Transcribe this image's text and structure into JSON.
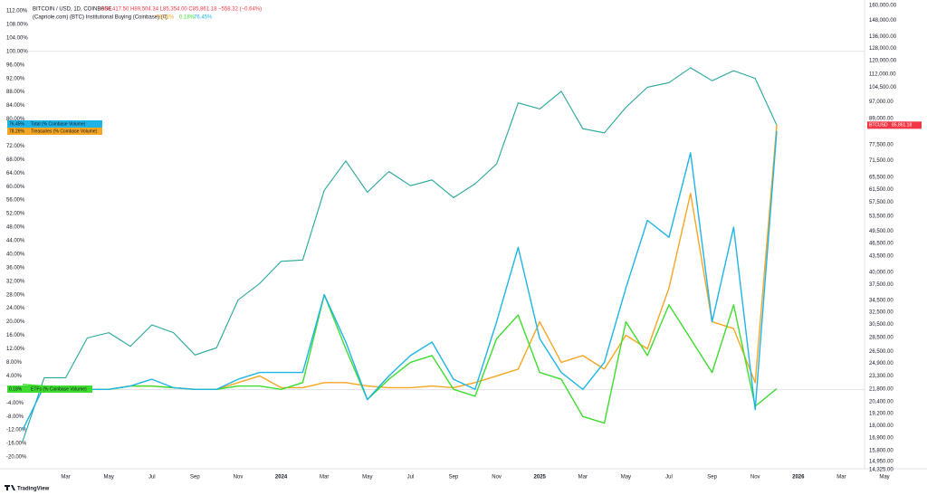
{
  "chart_data": {
    "type": "line",
    "title": "BITCOIN / USD, 1D, COINBASE",
    "ohlc": "O86,417.50 H89,504.34 L85,354.00 C85,861.18 −558.32 (−0.64%)",
    "indicator": "(Capriole.com) (BTC) Institutional Buying (Coinbase) (0)",
    "footer": "TradingView",
    "x": [
      "2023-01",
      "2023-02",
      "2023-03",
      "2023-04",
      "2023-05",
      "2023-06",
      "2023-07",
      "2023-08",
      "2023-09",
      "2023-10",
      "2023-11",
      "2023-12",
      "2024-01",
      "2024-02",
      "2024-03",
      "2024-04",
      "2024-05",
      "2024-06",
      "2024-07",
      "2024-08",
      "2024-09",
      "2024-10",
      "2024-11",
      "2024-12",
      "2025-01",
      "2025-02",
      "2025-03",
      "2025-04",
      "2025-05",
      "2025-06",
      "2025-07",
      "2025-08",
      "2025-09",
      "2025-10",
      "2025-11",
      "2025-12"
    ],
    "xticks": [
      {
        "value": "2023-03",
        "label": "Mar"
      },
      {
        "value": "2023-05",
        "label": "May"
      },
      {
        "value": "2023-07",
        "label": "Jul"
      },
      {
        "value": "2023-09",
        "label": "Sep"
      },
      {
        "value": "2023-11",
        "label": "Nov"
      },
      {
        "value": "2024-01",
        "label": "2024"
      },
      {
        "value": "2024-03",
        "label": "Mar"
      },
      {
        "value": "2024-05",
        "label": "May"
      },
      {
        "value": "2024-07",
        "label": "Jul"
      },
      {
        "value": "2024-09",
        "label": "Sep"
      },
      {
        "value": "2024-11",
        "label": "Nov"
      },
      {
        "value": "2025-01",
        "label": "2025"
      },
      {
        "value": "2025-03",
        "label": "Mar"
      },
      {
        "value": "2025-05",
        "label": "May"
      },
      {
        "value": "2025-07",
        "label": "Jul"
      },
      {
        "value": "2025-09",
        "label": "Sep"
      },
      {
        "value": "2025-11",
        "label": "Nov"
      },
      {
        "value": "2026-01",
        "label": "2026"
      },
      {
        "value": "2026-03",
        "label": "Mar"
      },
      {
        "value": "2026-05",
        "label": "May"
      }
    ],
    "ylim": [
      -23.75,
      113.6
    ],
    "yticks": [
      {
        "value": 112,
        "label": "112.00%"
      },
      {
        "value": 108,
        "label": "108.00%"
      },
      {
        "value": 104,
        "label": "104.00%"
      },
      {
        "value": 100,
        "label": "100.00%"
      },
      {
        "value": 96,
        "label": "96.00%"
      },
      {
        "value": 92,
        "label": "92.00%"
      },
      {
        "value": 88,
        "label": "88.00%"
      },
      {
        "value": 84,
        "label": "84.00%"
      },
      {
        "value": 80,
        "label": "80.00%"
      },
      {
        "value": 72,
        "label": "72.00%"
      },
      {
        "value": 68,
        "label": "68.00%"
      },
      {
        "value": 64,
        "label": "64.00%"
      },
      {
        "value": 60,
        "label": "60.00%"
      },
      {
        "value": 56,
        "label": "56.00%"
      },
      {
        "value": 52,
        "label": "52.00%"
      },
      {
        "value": 48,
        "label": "48.00%"
      },
      {
        "value": 44,
        "label": "44.00%"
      },
      {
        "value": 40,
        "label": "40.00%"
      },
      {
        "value": 36,
        "label": "36.00%"
      },
      {
        "value": 32,
        "label": "32.00%"
      },
      {
        "value": 28,
        "label": "28.00%"
      },
      {
        "value": 24,
        "label": "24.00%"
      },
      {
        "value": 20,
        "label": "20.00%"
      },
      {
        "value": 16,
        "label": "16.00%"
      },
      {
        "value": 12,
        "label": "12.00%"
      },
      {
        "value": 8,
        "label": "8.00%"
      },
      {
        "value": 4,
        "label": "4.00%"
      },
      {
        "value": -4,
        "label": "-4.00%"
      },
      {
        "value": -8,
        "label": "-8.00%"
      },
      {
        "value": -12,
        "label": "-12.00%"
      },
      {
        "value": -16,
        "label": "-16.00%"
      },
      {
        "value": -20,
        "label": "-20.00%"
      }
    ],
    "y2lim": [
      14325,
      160000
    ],
    "y2scale": "log",
    "y2ticks": [
      {
        "value": 160000,
        "label": "160,000.00"
      },
      {
        "value": 148000,
        "label": "148,000.00"
      },
      {
        "value": 136000,
        "label": "136,000.00"
      },
      {
        "value": 128000,
        "label": "128,000.00"
      },
      {
        "value": 120000,
        "label": "120,000.00"
      },
      {
        "value": 112000,
        "label": "112,000.00"
      },
      {
        "value": 104500,
        "label": "104,500.00"
      },
      {
        "value": 97000,
        "label": "97,000.00"
      },
      {
        "value": 89000,
        "label": "89,000.00"
      },
      {
        "value": 77500,
        "label": "77,500.00"
      },
      {
        "value": 71500,
        "label": "71,500.00"
      },
      {
        "value": 65500,
        "label": "65,500.00"
      },
      {
        "value": 61500,
        "label": "61,500.00"
      },
      {
        "value": 57500,
        "label": "57,500.00"
      },
      {
        "value": 53500,
        "label": "53,500.00"
      },
      {
        "value": 49500,
        "label": "49,500.00"
      },
      {
        "value": 46500,
        "label": "46,500.00"
      },
      {
        "value": 43500,
        "label": "43,500.00"
      },
      {
        "value": 40000,
        "label": "40,000.00"
      },
      {
        "value": 37500,
        "label": "37,500.00"
      },
      {
        "value": 34500,
        "label": "34,500.00"
      },
      {
        "value": 32500,
        "label": "32,500.00"
      },
      {
        "value": 30500,
        "label": "30,500.00"
      },
      {
        "value": 28500,
        "label": "28,500.00"
      },
      {
        "value": 26500,
        "label": "26,500.00"
      },
      {
        "value": 24900,
        "label": "24,900.00"
      },
      {
        "value": 23300,
        "label": "23,300.00"
      },
      {
        "value": 21800,
        "label": "21,800.00"
      },
      {
        "value": 20400,
        "label": "20,400.00"
      },
      {
        "value": 19200,
        "label": "19,200.00"
      },
      {
        "value": 18000,
        "label": "18,000.00"
      },
      {
        "value": 16900,
        "label": "16,900.00"
      },
      {
        "value": 15800,
        "label": "15,800.00"
      },
      {
        "value": 14950,
        "label": "14,950.00"
      },
      {
        "value": 14325,
        "label": "14,325.00"
      }
    ],
    "reference_lines": [
      0,
      100
    ],
    "grid": false,
    "series": [
      {
        "name": "BTCUSD",
        "color": "#26a69a",
        "axis": "y2",
        "last_value_label": "85,861.18",
        "tag_color": "#f23645",
        "values": [
          16600,
          23100,
          23100,
          28400,
          29200,
          27200,
          30400,
          29200,
          26000,
          27000,
          34600,
          37700,
          42300,
          42600,
          61200,
          71300,
          60600,
          67500,
          62700,
          64600,
          58900,
          63300,
          70200,
          96400,
          93400,
          102400,
          84300,
          82500,
          94200,
          104600,
          107100,
          115700,
          108200,
          114000,
          109500,
          85861.18
        ]
      },
      {
        "name": "Treasuries (% Coinbase Volume)",
        "color": "#f5a623",
        "last_value_label": "78.26%",
        "values": [
          0,
          1,
          0.5,
          0,
          0,
          1,
          1,
          0.5,
          0,
          0,
          2,
          4,
          0.5,
          0.5,
          2,
          2,
          1,
          0.5,
          0.5,
          1,
          0.5,
          2,
          4,
          6,
          20,
          8,
          10,
          6,
          16,
          12,
          30,
          58,
          20,
          18,
          2,
          78.26
        ]
      },
      {
        "name": "ETFs (% Coinbase Volume)",
        "color": "#3ddc2f",
        "last_value_label": "0.18%",
        "values": [
          1.5,
          1,
          0.5,
          0,
          0,
          1,
          1,
          0.5,
          0,
          0,
          1,
          1,
          0,
          2,
          28,
          12,
          -3,
          3,
          8,
          10,
          0,
          -2,
          15,
          22,
          5,
          3,
          -8,
          -10,
          20,
          10,
          25,
          15,
          5,
          25,
          -5,
          0.18
        ]
      },
      {
        "name": "Total (% Coinbase Volume)",
        "color": "#1eb4e6",
        "last_value_label": "76.45%",
        "values": [
          -12,
          1,
          0.5,
          0,
          0,
          1,
          3,
          0.5,
          0,
          0,
          3,
          5,
          5,
          5,
          28,
          14,
          -3,
          4,
          10,
          14,
          3,
          0,
          20,
          42,
          15,
          5,
          0,
          8,
          30,
          50,
          45,
          70,
          20,
          48,
          -6,
          76.45
        ]
      }
    ]
  }
}
